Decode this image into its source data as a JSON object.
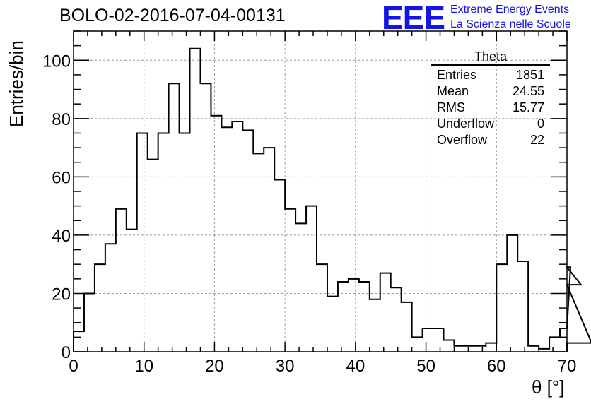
{
  "title": "BOLO-02-2016-07-04-00131",
  "logo": {
    "mark": "EEE",
    "line1": "Extreme Energy Events",
    "line2": "La Scienza nelle Scuole"
  },
  "stats": {
    "title": "Theta",
    "rows": [
      {
        "label": "Entries",
        "value": "1851"
      },
      {
        "label": "Mean",
        "value": "24.55"
      },
      {
        "label": "RMS",
        "value": "15.77"
      },
      {
        "label": "Underflow",
        "value": "0"
      },
      {
        "label": "Overflow",
        "value": "22"
      }
    ]
  },
  "chart_data": {
    "type": "histogram",
    "title": "BOLO-02-2016-07-04-00131",
    "xlabel": "θ [°]",
    "ylabel": "Entries/bin",
    "xlim": [
      0,
      70
    ],
    "ylim": [
      0,
      110
    ],
    "grid": true,
    "x_ticks": [
      0,
      10,
      20,
      30,
      40,
      50,
      60,
      70
    ],
    "y_ticks": [
      0,
      20,
      40,
      60,
      80,
      100
    ],
    "bin_width": 1.5,
    "bin_edges_start": 0,
    "values": [
      7,
      20,
      30,
      37,
      49,
      42,
      75,
      66,
      75,
      92,
      75,
      104,
      92,
      81,
      77,
      79,
      76,
      68,
      70,
      59,
      49,
      44,
      50,
      30,
      19,
      24,
      25,
      24,
      18,
      27,
      22,
      17,
      5,
      8,
      8,
      4,
      2,
      2,
      2,
      3,
      30,
      40,
      31,
      2,
      1,
      5,
      8,
      29,
      23,
      3
    ],
    "color": "#000000"
  }
}
